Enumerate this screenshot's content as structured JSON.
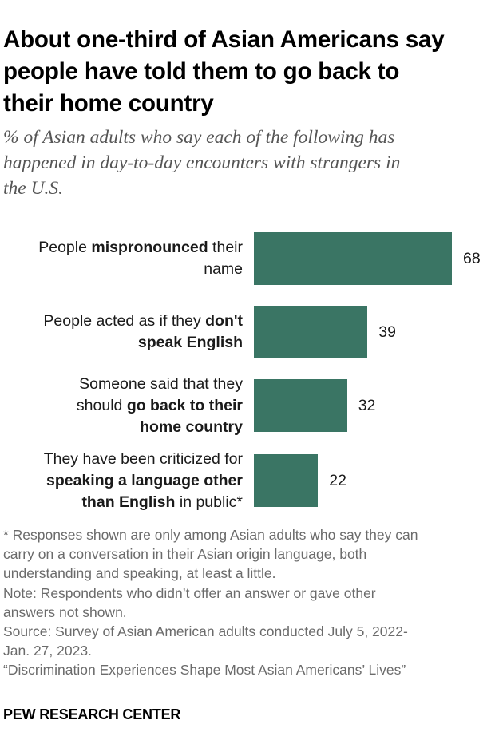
{
  "title_lines": [
    "About one-third of Asian Americans say",
    "people have told them to go back to",
    "their home country"
  ],
  "subtitle_lines": [
    "% of Asian adults who say each of the following has",
    "happened in day-to-day encounters with strangers in",
    "the U.S."
  ],
  "colors": {
    "bar": "#3a7564"
  },
  "chart_data": {
    "type": "bar",
    "orientation": "horizontal",
    "categories": [
      "People mispronounced their name",
      "People acted as if they don't speak English",
      "Someone said that they should go back to their home country",
      "They have been criticized for speaking a language other than English in public*"
    ],
    "values": [
      68,
      39,
      32,
      22
    ],
    "category_label_lines": [
      [
        [
          {
            "t": "People ",
            "b": false
          },
          {
            "t": "mispronounced",
            "b": true
          },
          {
            "t": " their",
            "b": false
          }
        ],
        [
          {
            "t": "name",
            "b": false
          }
        ]
      ],
      [
        [
          {
            "t": "People acted as if they ",
            "b": false
          },
          {
            "t": "don't",
            "b": true
          }
        ],
        [
          {
            "t": "speak English",
            "b": true
          }
        ]
      ],
      [
        [
          {
            "t": "Someone said that they",
            "b": false
          }
        ],
        [
          {
            "t": "should ",
            "b": false
          },
          {
            "t": "go back to their",
            "b": true
          }
        ],
        [
          {
            "t": "home country",
            "b": true
          }
        ]
      ],
      [
        [
          {
            "t": "They have been criticized for",
            "b": false
          }
        ],
        [
          {
            "t": "speaking a language other",
            "b": true
          }
        ],
        [
          {
            "t": "than English",
            "b": true
          },
          {
            "t": " in public*",
            "b": false
          }
        ]
      ]
    ],
    "data_labels": [
      "68",
      "39",
      "32",
      "22"
    ],
    "title": "",
    "xlabel": "",
    "ylabel": "",
    "xlim": [
      0,
      68
    ],
    "grid": false,
    "legend": "none"
  },
  "notes_lines": [
    "* Responses shown are only among Asian adults who say they can",
    "carry on a conversation in their Asian origin language, both",
    "understanding and speaking, at least a little.",
    "Note: Respondents who didn’t offer an answer or gave other",
    "answers not shown.",
    "Source: Survey of Asian American adults conducted July 5, 2022-",
    "Jan. 27, 2023.",
    "“Discrimination Experiences Shape Most Asian Americans’ Lives”"
  ],
  "brand": "PEW RESEARCH CENTER"
}
